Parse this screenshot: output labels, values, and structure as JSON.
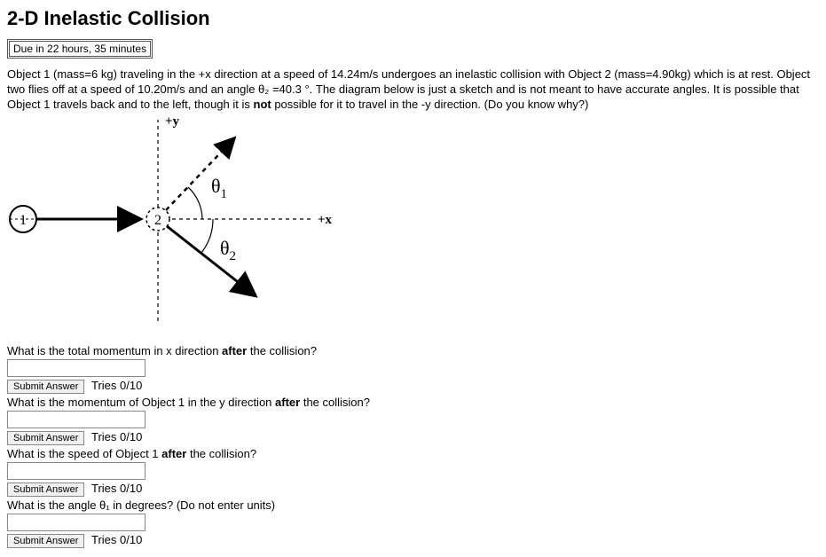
{
  "title": "2-D Inelastic Collision",
  "due": "Due in 22 hours, 35 minutes",
  "problem_html": "Object 1 (mass=6 kg) traveling in the +x direction at a speed of 14.24m/s undergoes an inelastic collision with Object 2 (mass=4.90kg) which is at rest. Object two flies off at a speed of 10.20m/s and an angle θ₂ =40.3 °. The diagram below is just a sketch and is not meant to have accurate angles. It is possible that Object 1 travels back and to the left, though it is <b>not</b> possible for it to travel in the -y direction. (Do you know why?)",
  "diagram": {
    "labels": {
      "y": "+y",
      "x": "+x",
      "theta1": "θ",
      "theta1_sub": "1",
      "theta2": "θ",
      "theta2_sub": "2",
      "obj1": "1",
      "obj2": "2"
    },
    "colors": {
      "stroke": "#000000",
      "fill": "#ffffff"
    }
  },
  "questions": [
    {
      "text_html": "What is the total momentum in x direction <b>after</b> the collision?",
      "submit": "Submit Answer",
      "tries": "Tries 0/10"
    },
    {
      "text_html": "What is the momentum of Object 1 in the y direction <b>after</b> the collision?",
      "submit": "Submit Answer",
      "tries": "Tries 0/10"
    },
    {
      "text_html": "What is the speed of Object 1 <b>after</b> the collision?",
      "submit": "Submit Answer",
      "tries": "Tries 0/10"
    },
    {
      "text_html": "What is the angle θ₁ in degrees? (Do not enter units)",
      "submit": "Submit Answer",
      "tries": "Tries 0/10"
    }
  ]
}
